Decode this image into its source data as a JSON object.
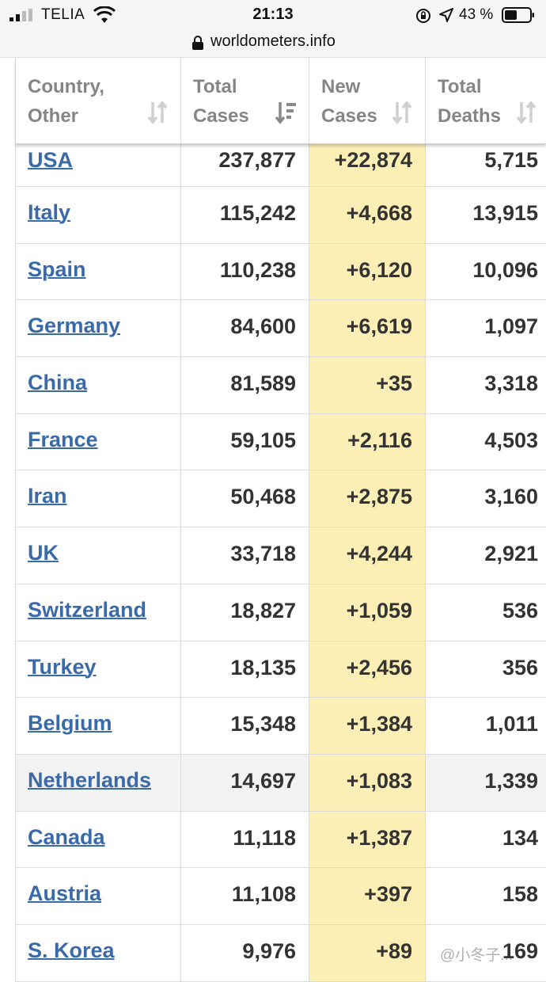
{
  "status_bar": {
    "carrier": "TELIA",
    "time": "21:13",
    "battery_percent": "43 %"
  },
  "browser": {
    "url": "worldometers.info"
  },
  "table": {
    "headers": [
      {
        "label": "Country,\nOther"
      },
      {
        "label": "Total\nCases"
      },
      {
        "label": "New\nCases"
      },
      {
        "label": "Total\nDeaths"
      }
    ],
    "rows": [
      {
        "country": "USA",
        "total_cases": "237,877",
        "new_cases": "+22,874",
        "total_deaths": "5,715"
      },
      {
        "country": "Italy",
        "total_cases": "115,242",
        "new_cases": "+4,668",
        "total_deaths": "13,915"
      },
      {
        "country": "Spain",
        "total_cases": "110,238",
        "new_cases": "+6,120",
        "total_deaths": "10,096"
      },
      {
        "country": "Germany",
        "total_cases": "84,600",
        "new_cases": "+6,619",
        "total_deaths": "1,097"
      },
      {
        "country": "China",
        "total_cases": "81,589",
        "new_cases": "+35",
        "total_deaths": "3,318"
      },
      {
        "country": "France",
        "total_cases": "59,105",
        "new_cases": "+2,116",
        "total_deaths": "4,503"
      },
      {
        "country": "Iran",
        "total_cases": "50,468",
        "new_cases": "+2,875",
        "total_deaths": "3,160"
      },
      {
        "country": "UK",
        "total_cases": "33,718",
        "new_cases": "+4,244",
        "total_deaths": "2,921"
      },
      {
        "country": "Switzerland",
        "total_cases": "18,827",
        "new_cases": "+1,059",
        "total_deaths": "536"
      },
      {
        "country": "Turkey",
        "total_cases": "18,135",
        "new_cases": "+2,456",
        "total_deaths": "356"
      },
      {
        "country": "Belgium",
        "total_cases": "15,348",
        "new_cases": "+1,384",
        "total_deaths": "1,011"
      },
      {
        "country": "Netherlands",
        "total_cases": "14,697",
        "new_cases": "+1,083",
        "total_deaths": "1,339"
      },
      {
        "country": "Canada",
        "total_cases": "11,118",
        "new_cases": "+1,387",
        "total_deaths": "134"
      },
      {
        "country": "Austria",
        "total_cases": "11,108",
        "new_cases": "+397",
        "total_deaths": "158"
      },
      {
        "country": "S. Korea",
        "total_cases": "9,976",
        "new_cases": "+89",
        "total_deaths": "169"
      }
    ]
  },
  "watermark": "@小冬子...",
  "colors": {
    "link": "#3b6aa8",
    "new_cases_bg": "#fbefb6",
    "header_text": "#858585",
    "cell_text": "#333333"
  }
}
